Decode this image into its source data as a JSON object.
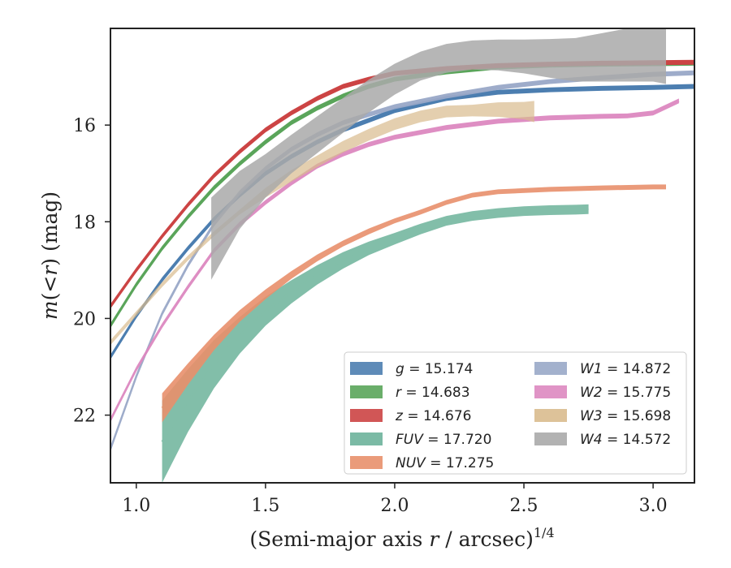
{
  "chart_data": {
    "type": "line",
    "xlabel": "(Semi-major axis r / arcsec)^1/4",
    "xlabel_main": "(Semi-major axis ",
    "xlabel_var": "r",
    "xlabel_tail": " / arcsec)",
    "xlabel_sup": "1/4",
    "ylabel": "m(<r) (mag)",
    "xlim": [
      0.9,
      3.16
    ],
    "ylim": [
      23.4,
      14.0
    ],
    "y_inverted": true,
    "grid": false,
    "legend_position": "lower-right",
    "xticks": [
      {
        "v": 1.0,
        "label": "1.0"
      },
      {
        "v": 1.5,
        "label": "1.5"
      },
      {
        "v": 2.0,
        "label": "2.0"
      },
      {
        "v": 2.5,
        "label": "2.5"
      },
      {
        "v": 3.0,
        "label": "3.0"
      }
    ],
    "yticks": [
      {
        "v": 16,
        "label": "16"
      },
      {
        "v": 18,
        "label": "18"
      },
      {
        "v": 20,
        "label": "20"
      },
      {
        "v": 22,
        "label": "22"
      }
    ],
    "series": [
      {
        "name": "g = 15.174",
        "color": "#4c7eb0",
        "alpha": 1.0,
        "width": 2.5,
        "x": [
          0.9,
          1.0,
          1.1,
          1.2,
          1.3,
          1.4,
          1.5,
          1.6,
          1.7,
          1.8,
          1.9,
          2.0,
          2.2,
          2.4,
          2.6,
          2.8,
          3.0,
          3.16
        ],
        "y": [
          20.8,
          19.95,
          19.2,
          18.55,
          17.95,
          17.45,
          17.0,
          16.65,
          16.35,
          16.1,
          15.9,
          15.7,
          15.45,
          15.32,
          15.27,
          15.24,
          15.22,
          15.2
        ],
        "band": [
          0.05,
          0.05,
          0.05,
          0.05,
          0.05,
          0.05,
          0.05,
          0.05,
          0.05,
          0.05,
          0.05,
          0.05,
          0.05,
          0.05,
          0.05,
          0.05,
          0.05,
          0.05
        ]
      },
      {
        "name": "r = 14.683",
        "color": "#5aa55a",
        "alpha": 1.0,
        "width": 2.5,
        "x": [
          0.9,
          1.0,
          1.1,
          1.2,
          1.3,
          1.4,
          1.5,
          1.6,
          1.7,
          1.8,
          1.9,
          2.0,
          2.2,
          2.4,
          2.6,
          2.8,
          3.0,
          3.16
        ],
        "y": [
          20.15,
          19.3,
          18.55,
          17.9,
          17.3,
          16.8,
          16.35,
          15.95,
          15.65,
          15.4,
          15.2,
          15.05,
          14.9,
          14.8,
          14.76,
          14.74,
          14.73,
          14.72
        ],
        "band": [
          0.05,
          0.05,
          0.05,
          0.05,
          0.05,
          0.05,
          0.05,
          0.05,
          0.05,
          0.05,
          0.05,
          0.05,
          0.05,
          0.05,
          0.05,
          0.05,
          0.05,
          0.05
        ]
      },
      {
        "name": "z = 14.676",
        "color": "#cc4444",
        "alpha": 1.0,
        "width": 2.5,
        "x": [
          0.9,
          1.0,
          1.1,
          1.2,
          1.3,
          1.4,
          1.5,
          1.6,
          1.7,
          1.8,
          1.9,
          2.0,
          2.2,
          2.4,
          2.6,
          2.8,
          3.0,
          3.16
        ],
        "y": [
          19.75,
          19.0,
          18.3,
          17.65,
          17.05,
          16.55,
          16.1,
          15.75,
          15.45,
          15.2,
          15.05,
          14.93,
          14.83,
          14.77,
          14.74,
          14.72,
          14.71,
          14.7
        ],
        "band": [
          0.05,
          0.05,
          0.05,
          0.05,
          0.05,
          0.05,
          0.05,
          0.05,
          0.05,
          0.05,
          0.05,
          0.05,
          0.05,
          0.05,
          0.05,
          0.05,
          0.05,
          0.05
        ]
      },
      {
        "name": "FUV = 17.720",
        "color": "#6db39b",
        "alpha": 0.85,
        "width": 2.5,
        "x": [
          1.1,
          1.2,
          1.3,
          1.4,
          1.5,
          1.6,
          1.7,
          1.8,
          1.9,
          2.0,
          2.1,
          2.2,
          2.3,
          2.4,
          2.5,
          2.6,
          2.7,
          2.75
        ],
        "y": [
          22.55,
          21.7,
          20.95,
          20.35,
          19.85,
          19.45,
          19.1,
          18.8,
          18.55,
          18.35,
          18.15,
          17.98,
          17.88,
          17.82,
          17.78,
          17.76,
          17.75,
          17.74
        ],
        "band": [
          0.85,
          0.65,
          0.5,
          0.38,
          0.3,
          0.24,
          0.2,
          0.17,
          0.14,
          0.12,
          0.11,
          0.1,
          0.1,
          0.1,
          0.1,
          0.1,
          0.1,
          0.1
        ]
      },
      {
        "name": "NUV = 17.275",
        "color": "#e8906c",
        "alpha": 0.9,
        "width": 2.5,
        "x": [
          1.1,
          1.2,
          1.3,
          1.4,
          1.5,
          1.6,
          1.7,
          1.8,
          1.9,
          2.0,
          2.1,
          2.2,
          2.3,
          2.4,
          2.6,
          2.8,
          3.0,
          3.05
        ],
        "y": [
          21.85,
          21.15,
          20.5,
          19.95,
          19.5,
          19.1,
          18.75,
          18.45,
          18.2,
          17.98,
          17.8,
          17.6,
          17.45,
          17.38,
          17.33,
          17.3,
          17.28,
          17.28
        ],
        "band": [
          0.3,
          0.22,
          0.16,
          0.12,
          0.1,
          0.08,
          0.07,
          0.06,
          0.06,
          0.05,
          0.05,
          0.05,
          0.05,
          0.05,
          0.05,
          0.05,
          0.05,
          0.05
        ]
      },
      {
        "name": "W1 = 14.872",
        "color": "#99a8c8",
        "alpha": 0.95,
        "width": 2.5,
        "x": [
          0.9,
          1.0,
          1.1,
          1.2,
          1.3,
          1.4,
          1.5,
          1.6,
          1.7,
          1.8,
          1.9,
          2.0,
          2.2,
          2.4,
          2.6,
          2.8,
          3.0,
          3.16
        ],
        "y": [
          22.7,
          21.2,
          19.9,
          18.9,
          18.05,
          17.4,
          16.9,
          16.5,
          16.2,
          15.95,
          15.78,
          15.62,
          15.4,
          15.22,
          15.1,
          15.02,
          14.95,
          14.92
        ],
        "band": [
          0.05,
          0.05,
          0.05,
          0.05,
          0.05,
          0.05,
          0.05,
          0.05,
          0.05,
          0.05,
          0.05,
          0.05,
          0.05,
          0.05,
          0.05,
          0.05,
          0.05,
          0.05
        ]
      },
      {
        "name": "W2 = 15.775",
        "color": "#dd88c0",
        "alpha": 0.95,
        "width": 2.5,
        "x": [
          0.9,
          1.0,
          1.1,
          1.2,
          1.3,
          1.4,
          1.5,
          1.6,
          1.7,
          1.8,
          1.9,
          2.0,
          2.2,
          2.4,
          2.6,
          2.8,
          2.9,
          3.0,
          3.1
        ],
        "y": [
          22.1,
          21.05,
          20.15,
          19.35,
          18.6,
          18.05,
          17.6,
          17.2,
          16.85,
          16.6,
          16.4,
          16.25,
          16.05,
          15.92,
          15.85,
          15.82,
          15.81,
          15.75,
          15.5
        ],
        "band": [
          0.05,
          0.05,
          0.05,
          0.05,
          0.05,
          0.05,
          0.05,
          0.05,
          0.05,
          0.05,
          0.05,
          0.05,
          0.05,
          0.05,
          0.05,
          0.05,
          0.05,
          0.05,
          0.05
        ]
      },
      {
        "name": "W3 = 15.698",
        "color": "#d9bb8e",
        "alpha": 0.7,
        "width": 2.5,
        "x": [
          0.9,
          1.0,
          1.1,
          1.2,
          1.3,
          1.4,
          1.5,
          1.6,
          1.7,
          1.8,
          1.9,
          2.0,
          2.1,
          2.2,
          2.3,
          2.4,
          2.5,
          2.54
        ],
        "y": [
          20.5,
          19.9,
          19.3,
          18.75,
          18.25,
          17.8,
          17.4,
          17.05,
          16.75,
          16.45,
          16.2,
          15.98,
          15.82,
          15.72,
          15.7,
          15.68,
          15.7,
          15.72
        ],
        "band": [
          0.05,
          0.05,
          0.05,
          0.05,
          0.05,
          0.05,
          0.1,
          0.12,
          0.12,
          0.12,
          0.12,
          0.12,
          0.12,
          0.12,
          0.12,
          0.15,
          0.18,
          0.22
        ]
      },
      {
        "name": "W4 = 14.572",
        "color": "#aaaaaa",
        "alpha": 0.85,
        "width": 2.5,
        "x": [
          1.29,
          1.4,
          1.5,
          1.6,
          1.7,
          1.8,
          1.9,
          2.0,
          2.1,
          2.2,
          2.3,
          2.4,
          2.5,
          2.6,
          2.7,
          2.8,
          2.9,
          3.0,
          3.05
        ],
        "y": [
          18.35,
          17.55,
          17.05,
          16.6,
          16.2,
          15.8,
          15.4,
          15.05,
          14.78,
          14.62,
          14.55,
          14.55,
          14.58,
          14.62,
          14.65,
          14.6,
          14.55,
          14.5,
          14.5
        ],
        "band": [
          0.85,
          0.6,
          0.45,
          0.4,
          0.38,
          0.36,
          0.34,
          0.32,
          0.3,
          0.3,
          0.3,
          0.32,
          0.35,
          0.4,
          0.45,
          0.5,
          0.55,
          0.6,
          0.65
        ]
      }
    ],
    "legend": [
      {
        "label": "g = 15.174",
        "var": "g",
        "val": " = 15.174",
        "color": "#4c7eb0"
      },
      {
        "label": "r = 14.683",
        "var": "r",
        "val": " = 14.683",
        "color": "#5aa55a"
      },
      {
        "label": "z = 14.676",
        "var": "z",
        "val": " = 14.676",
        "color": "#cc4444"
      },
      {
        "label": "FUV = 17.720",
        "var": "FUV",
        "val": " = 17.720",
        "color": "#6db39b"
      },
      {
        "label": "NUV = 17.275",
        "var": "NUV",
        "val": " = 17.275",
        "color": "#e8906c"
      },
      {
        "label": "W1 = 14.872",
        "var": "W1",
        "val": " = 14.872",
        "color": "#99a8c8"
      },
      {
        "label": "W2 = 15.775",
        "var": "W2",
        "val": " = 15.775",
        "color": "#dd88c0"
      },
      {
        "label": "W3 = 15.698",
        "var": "W3",
        "val": " = 15.698",
        "color": "#d9bb8e"
      },
      {
        "label": "W4 = 14.572",
        "var": "W4",
        "val": " = 14.572",
        "color": "#aaaaaa"
      }
    ]
  }
}
